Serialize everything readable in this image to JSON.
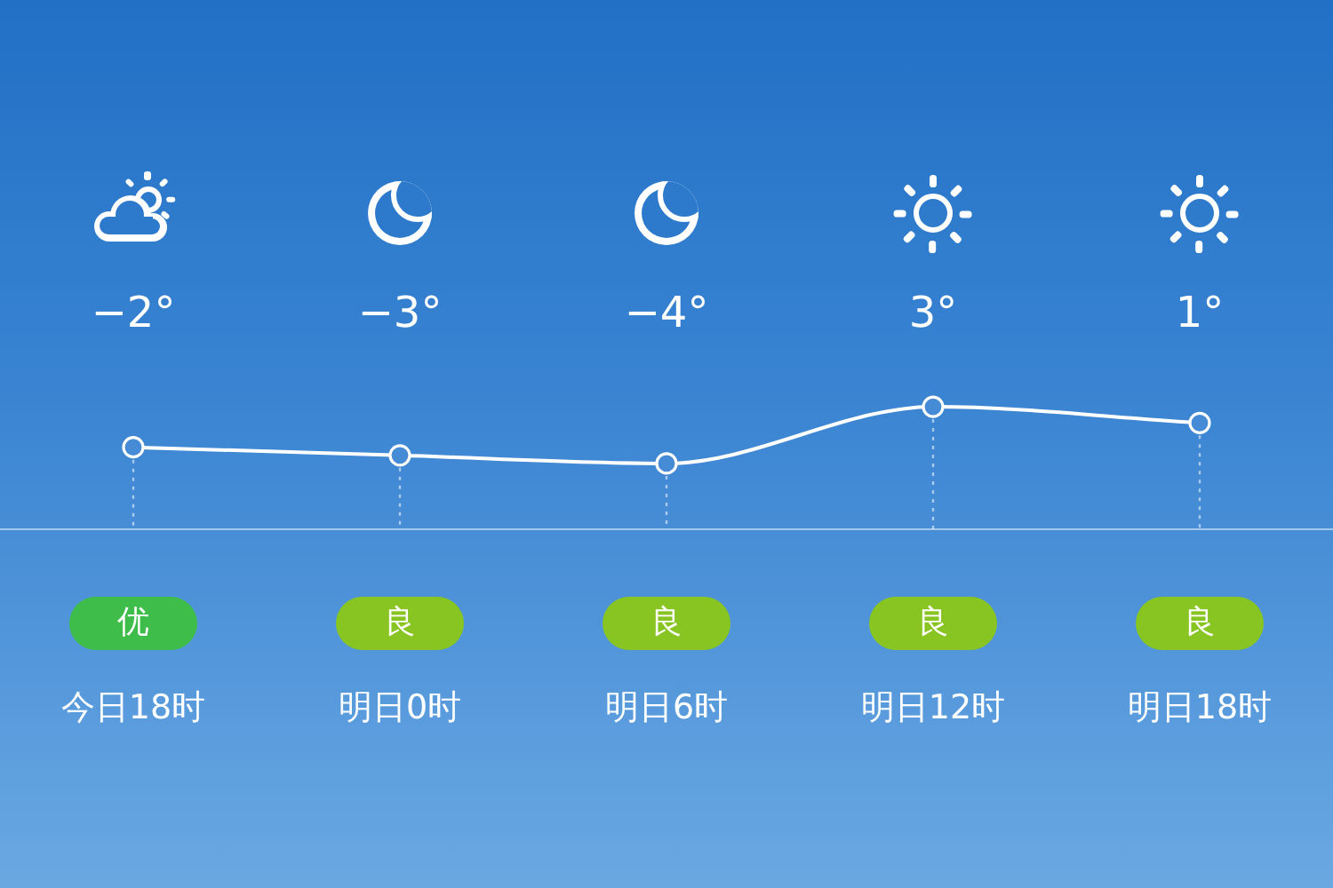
{
  "chart_data": {
    "type": "line",
    "categories": [
      "今日18时",
      "明日0时",
      "明日6时",
      "明日12时",
      "明日18时"
    ],
    "values": [
      -2,
      -3,
      -4,
      3,
      1
    ],
    "color": "#ffffff",
    "value_labels": [
      "−2°",
      "−3°",
      "−4°",
      "3°",
      "1°"
    ],
    "marker": "circle",
    "line_style": "solid",
    "tick_labels": "x",
    "annotations": [
      "优",
      "良",
      "良",
      "良",
      "良"
    ]
  }
}
